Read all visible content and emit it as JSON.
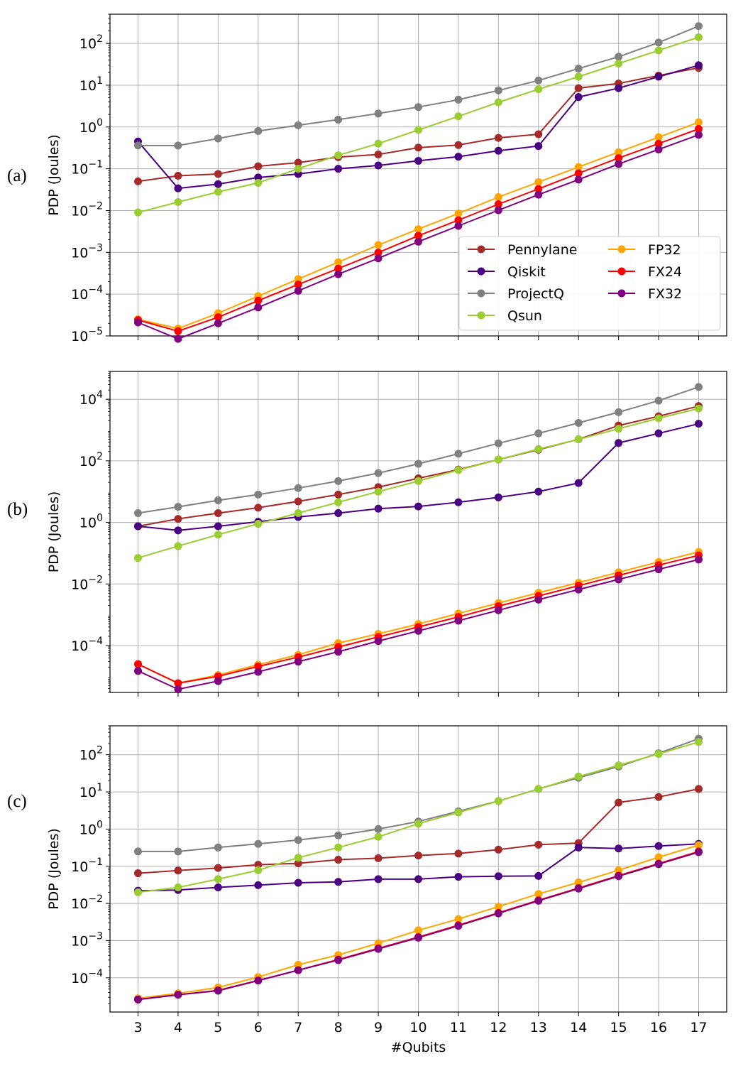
{
  "chart_data": [
    {
      "type": "line",
      "panel_label": "(a)",
      "ylabel": "PDP (Joules)",
      "xlabel": "",
      "yscale": "log",
      "ylim": [
        1e-05,
        500
      ],
      "y_ticks": [
        {
          "base": "10",
          "exp": "2"
        },
        {
          "base": "10",
          "exp": "1"
        },
        {
          "base": "10",
          "exp": "0"
        },
        {
          "base": "10",
          "exp": "−1"
        },
        {
          "base": "10",
          "exp": "−2"
        },
        {
          "base": "10",
          "exp": "−3"
        },
        {
          "base": "10",
          "exp": "−4"
        },
        {
          "base": "10",
          "exp": "−5"
        }
      ],
      "legend": "lower-right",
      "series": [
        {
          "name": "Pennylane",
          "color": "#a52a2a",
          "values": [
            0.05,
            0.068,
            0.075,
            0.115,
            0.14,
            0.19,
            0.22,
            0.32,
            0.37,
            0.55,
            0.67,
            8.5,
            11.0,
            17.0,
            26.0
          ]
        },
        {
          "name": "Qiskit",
          "color": "#4b0082",
          "values": [
            0.45,
            0.034,
            0.043,
            0.062,
            0.075,
            0.1,
            0.12,
            0.155,
            0.195,
            0.27,
            0.35,
            5.2,
            8.5,
            16.0,
            30.0
          ]
        },
        {
          "name": "ProjectQ",
          "color": "#808080",
          "values": [
            0.36,
            0.36,
            0.53,
            0.8,
            1.1,
            1.5,
            2.1,
            3.0,
            4.5,
            7.5,
            13.0,
            25.0,
            48.0,
            105.0,
            260.0
          ]
        },
        {
          "name": "Qsun",
          "color": "#9acd32",
          "values": [
            0.009,
            0.016,
            0.028,
            0.046,
            0.1,
            0.21,
            0.4,
            0.85,
            1.8,
            3.9,
            8.0,
            16.0,
            33.0,
            68.0,
            140.0
          ]
        },
        {
          "name": "FP32",
          "color": "#ffa500",
          "values": [
            2.5e-05,
            1.5e-05,
            3.5e-05,
            9e-05,
            0.00023,
            0.00058,
            0.0015,
            0.0036,
            0.0085,
            0.021,
            0.048,
            0.11,
            0.25,
            0.57,
            1.3
          ]
        },
        {
          "name": "FX24",
          "color": "#ff0000",
          "values": [
            2.4e-05,
            1.3e-05,
            2.8e-05,
            7e-05,
            0.00017,
            0.00041,
            0.00099,
            0.0025,
            0.0059,
            0.0142,
            0.033,
            0.078,
            0.18,
            0.4,
            0.9
          ]
        },
        {
          "name": "FX32",
          "color": "#800080",
          "values": [
            2.1e-05,
            8.5e-06,
            2e-05,
            4.8e-05,
            0.00012,
            0.0003,
            0.00072,
            0.0018,
            0.0043,
            0.0102,
            0.024,
            0.055,
            0.13,
            0.29,
            0.65
          ]
        }
      ]
    },
    {
      "type": "line",
      "panel_label": "(b)",
      "ylabel": "PDP (Joules)",
      "xlabel": "",
      "yscale": "log",
      "ylim": [
        3e-06,
        80000
      ],
      "y_ticks": [
        {
          "base": "10",
          "exp": "4"
        },
        {
          "base": "10",
          "exp": "2"
        },
        {
          "base": "10",
          "exp": "0"
        },
        {
          "base": "10",
          "exp": "−2"
        },
        {
          "base": "10",
          "exp": "−4"
        }
      ],
      "series": [
        {
          "name": "Pennylane",
          "color": "#a52a2a",
          "values": [
            0.75,
            1.3,
            2.0,
            3.0,
            4.8,
            8.0,
            14.0,
            27.0,
            52.0,
            110.0,
            230.0,
            500.0,
            1400.0,
            2800.0,
            6000.0
          ]
        },
        {
          "name": "Qiskit",
          "color": "#4b0082",
          "values": [
            0.75,
            0.55,
            0.75,
            1.05,
            1.5,
            2.0,
            2.8,
            3.3,
            4.5,
            6.5,
            10.0,
            19.0,
            380.0,
            780.0,
            1600.0
          ]
        },
        {
          "name": "ProjectQ",
          "color": "#808080",
          "values": [
            2.0,
            3.2,
            5.2,
            8.0,
            13.0,
            22.0,
            40.0,
            80.0,
            170.0,
            370.0,
            780.0,
            1700.0,
            3800.0,
            9000.0,
            25000.0
          ]
        },
        {
          "name": "Qsun",
          "color": "#9acd32",
          "values": [
            0.07,
            0.17,
            0.4,
            0.9,
            2.0,
            4.5,
            10.0,
            22.0,
            50.0,
            110.0,
            240.0,
            500.0,
            1100.0,
            2400.0,
            5000.0
          ]
        },
        {
          "name": "FP32",
          "color": "#ffa500",
          "values": [
            2.5e-05,
            6e-06,
            1.1e-05,
            2.4e-05,
            5e-05,
            0.00012,
            0.00024,
            0.0005,
            0.0011,
            0.0024,
            0.0052,
            0.011,
            0.024,
            0.052,
            0.11
          ]
        },
        {
          "name": "FX24",
          "color": "#ff0000",
          "values": [
            2.5e-05,
            6e-06,
            1e-05,
            2.1e-05,
            4.2e-05,
            9e-05,
            0.00019,
            0.0004,
            0.00085,
            0.0019,
            0.0041,
            0.0088,
            0.019,
            0.041,
            0.085
          ]
        },
        {
          "name": "FX32",
          "color": "#800080",
          "values": [
            1.5e-05,
            3.8e-06,
            7e-06,
            1.4e-05,
            3e-05,
            6.3e-05,
            0.00014,
            0.0003,
            0.00064,
            0.0014,
            0.0031,
            0.0066,
            0.014,
            0.03,
            0.062
          ]
        }
      ]
    },
    {
      "type": "line",
      "panel_label": "(c)",
      "ylabel": "PDP (Joules)",
      "xlabel": "#Qubits",
      "yscale": "log",
      "ylim": [
        1.2e-05,
        600
      ],
      "x": [
        3,
        4,
        5,
        6,
        7,
        8,
        9,
        10,
        11,
        12,
        13,
        14,
        15,
        16,
        17
      ],
      "y_ticks": [
        {
          "base": "10",
          "exp": "2"
        },
        {
          "base": "10",
          "exp": "1"
        },
        {
          "base": "10",
          "exp": "0"
        },
        {
          "base": "10",
          "exp": "−1"
        },
        {
          "base": "10",
          "exp": "−2"
        },
        {
          "base": "10",
          "exp": "−3"
        },
        {
          "base": "10",
          "exp": "−4"
        }
      ],
      "series": [
        {
          "name": "Pennylane",
          "color": "#a52a2a",
          "values": [
            0.065,
            0.077,
            0.09,
            0.11,
            0.12,
            0.15,
            0.165,
            0.195,
            0.22,
            0.28,
            0.38,
            0.42,
            5.2,
            7.3,
            12.0
          ]
        },
        {
          "name": "Qiskit",
          "color": "#4b0082",
          "values": [
            0.022,
            0.023,
            0.027,
            0.031,
            0.036,
            0.038,
            0.045,
            0.045,
            0.052,
            0.054,
            0.055,
            0.32,
            0.3,
            0.35,
            0.4
          ]
        },
        {
          "name": "ProjectQ",
          "color": "#808080",
          "values": [
            0.25,
            0.25,
            0.32,
            0.4,
            0.51,
            0.68,
            1.0,
            1.6,
            3.0,
            5.7,
            12.0,
            24.0,
            48.0,
            110.0,
            270.0
          ]
        },
        {
          "name": "Qsun",
          "color": "#9acd32",
          "values": [
            0.02,
            0.027,
            0.045,
            0.078,
            0.17,
            0.32,
            0.62,
            1.4,
            2.8,
            5.7,
            12.0,
            26.0,
            52.0,
            105.0,
            220.0
          ]
        },
        {
          "name": "FP32",
          "color": "#ffa500",
          "values": [
            2.8e-05,
            3.8e-05,
            5.5e-05,
            0.000105,
            0.000225,
            0.00041,
            0.00085,
            0.0019,
            0.0038,
            0.0082,
            0.018,
            0.037,
            0.078,
            0.175,
            0.37
          ]
        },
        {
          "name": "FX24",
          "color": "#ff0000",
          "values": [
            2.6e-05,
            3.5e-05,
            4.6e-05,
            8.5e-05,
            0.00016,
            0.00031,
            0.00062,
            0.00125,
            0.0026,
            0.0056,
            0.0122,
            0.026,
            0.056,
            0.118,
            0.25
          ]
        },
        {
          "name": "FX32",
          "color": "#800080",
          "values": [
            2.6e-05,
            3.5e-05,
            4.5e-05,
            8.4e-05,
            0.00016,
            0.0003,
            0.0006,
            0.0012,
            0.0025,
            0.0054,
            0.0118,
            0.025,
            0.054,
            0.114,
            0.24
          ]
        }
      ]
    }
  ]
}
